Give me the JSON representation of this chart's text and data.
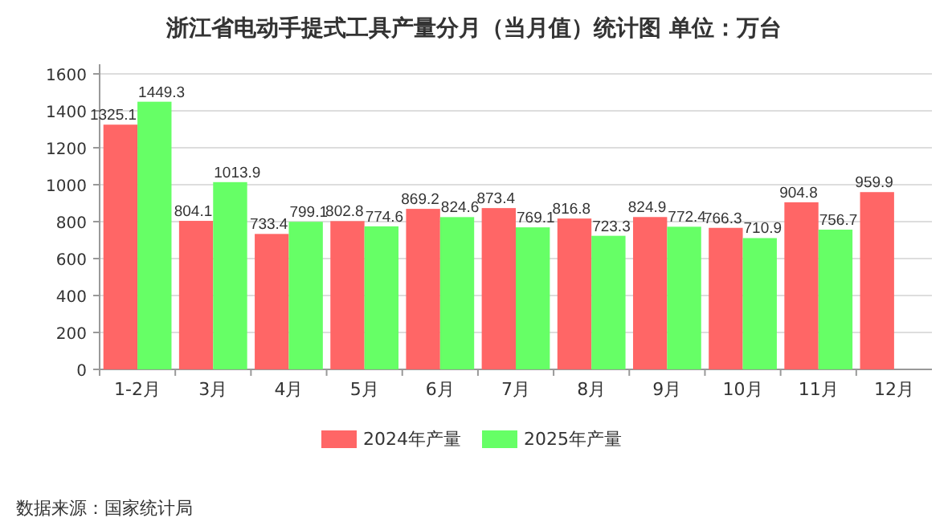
{
  "chart_data": {
    "type": "bar",
    "title": "浙江省电动手提式工具产量分月（当月值）统计图 单位：万台",
    "categories": [
      "1-2月",
      "3月",
      "4月",
      "5月",
      "6月",
      "7月",
      "8月",
      "9月",
      "10月",
      "11月",
      "12月"
    ],
    "series": [
      {
        "name": "2024年产量",
        "color": "#ff6666",
        "values": [
          1325.1,
          804.1,
          733.4,
          802.8,
          869.2,
          873.4,
          816.8,
          824.9,
          766.3,
          904.8,
          959.9
        ]
      },
      {
        "name": "2025年产量",
        "color": "#66ff66",
        "values": [
          1449.3,
          1013.9,
          799.1,
          774.6,
          824.6,
          769.1,
          723.3,
          772.4,
          710.9,
          756.7,
          null
        ]
      }
    ],
    "ylim": [
      0,
      1600
    ],
    "yticks": [
      0,
      200,
      400,
      600,
      800,
      1000,
      1200,
      1400,
      1600
    ],
    "grid": "y",
    "legend": "bottom",
    "data_labels": true,
    "annotations": [
      "数据来源：国家统计局"
    ]
  }
}
